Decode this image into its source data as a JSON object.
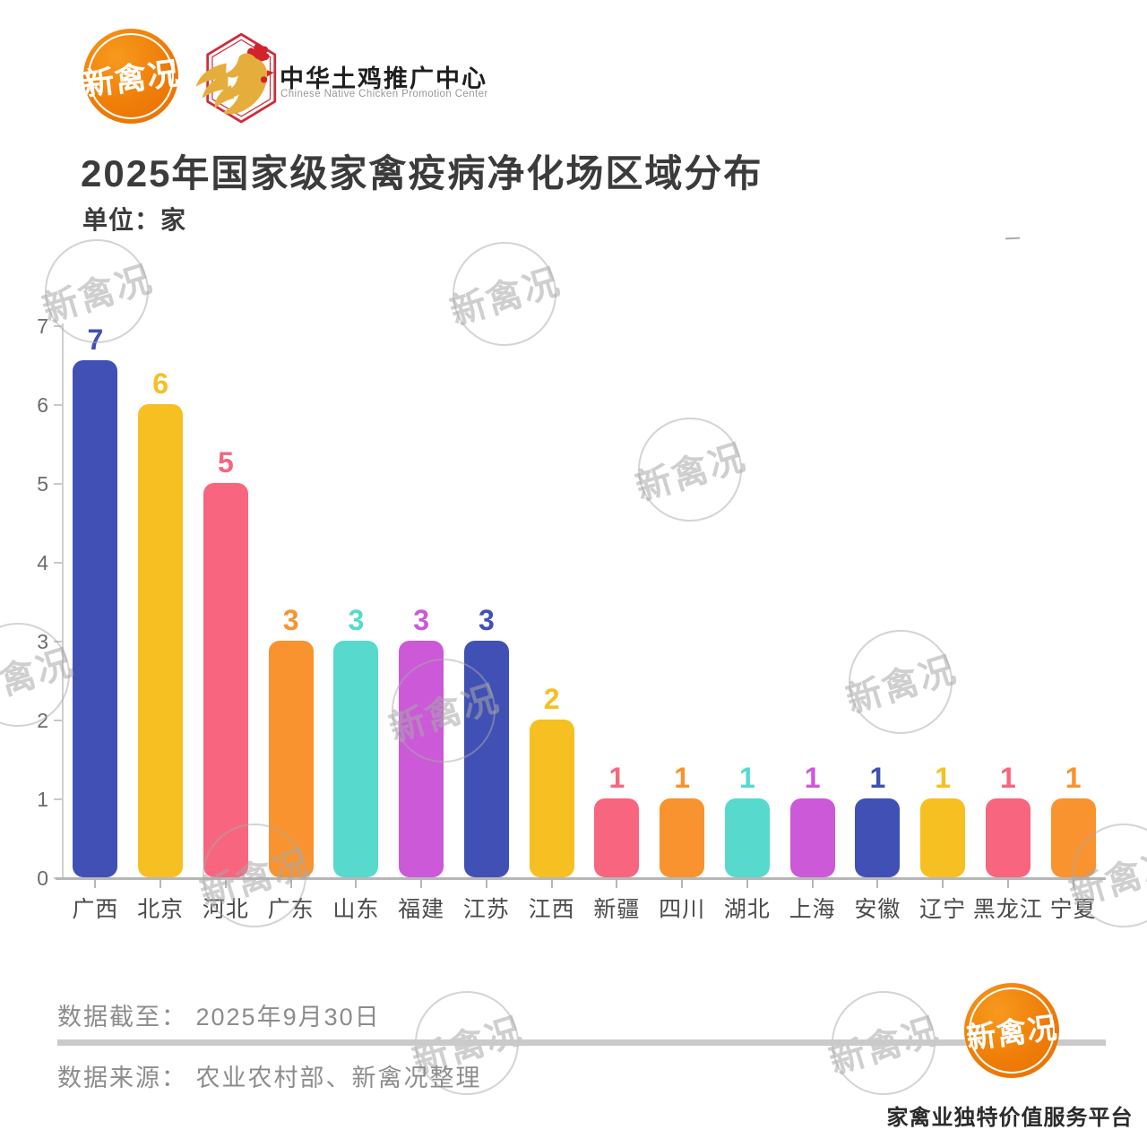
{
  "header": {
    "logo_text": "新禽况",
    "org_name": "中华土鸡推广中心",
    "org_name_en": "Chinese Native Chicken Promotion Center"
  },
  "title": "2025年国家级家禽疫病净化场区域分布",
  "unit_label": "单位：家",
  "chart_data": {
    "type": "bar",
    "title": "2025年国家级家禽疫病净化场区域分布",
    "unit": "家",
    "categories": [
      "广西",
      "北京",
      "河北",
      "广东",
      "山东",
      "福建",
      "江苏",
      "江西",
      "新疆",
      "四川",
      "湖北",
      "上海",
      "安徽",
      "辽宁",
      "黑龙江",
      "宁夏"
    ],
    "values": [
      7,
      6,
      5,
      3,
      3,
      3,
      3,
      2,
      1,
      1,
      1,
      1,
      1,
      1,
      1,
      1
    ],
    "bar_colors": [
      "#4150b4",
      "#f6bf22",
      "#f8657e",
      "#f8932f",
      "#57d9ce",
      "#cb59d8",
      "#4150b4",
      "#f6bf22",
      "#f8657e",
      "#f8932f",
      "#57d9ce",
      "#cb59d8",
      "#4150b4",
      "#f6bf22",
      "#f8657e",
      "#f8932f"
    ],
    "y_ticks": [
      0,
      1,
      2,
      3,
      4,
      5,
      6,
      7
    ],
    "ylim": [
      0,
      7
    ],
    "grid": false,
    "legend": false,
    "value_labels": "above bars, colored same as bar"
  },
  "watermark": {
    "text": "新禽况"
  },
  "footer": {
    "data_cutoff": "数据截至： 2025年9月30日",
    "data_source": "数据来源： 农业农村部、新禽况整理",
    "logo_text": "新禽况",
    "tagline": "家禽业独特价值服务平台"
  },
  "colors": {
    "brand_orange": "#ee7d08",
    "badge_red": "#cf2c38",
    "rooster_gold": "#e5ad3b",
    "axis_line": "#c9c9c9",
    "baseline": "#b7b7b7",
    "title_text": "#3b3b3b",
    "footer_text": "#8c8c8c"
  }
}
